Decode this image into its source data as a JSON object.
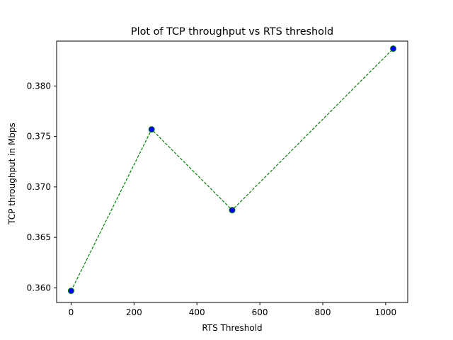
{
  "chart_data": {
    "type": "line",
    "title": "Plot of TCP throughput vs RTS threshold",
    "xlabel": "RTS Threshold",
    "ylabel": "TCP throughput in Mbps",
    "xlim": [
      -46,
      1070
    ],
    "ylim": [
      0.35855,
      0.38445
    ],
    "xticks": [
      0,
      200,
      400,
      600,
      800,
      1000
    ],
    "xtick_labels": [
      "0",
      "200",
      "400",
      "600",
      "800",
      "1000"
    ],
    "yticks": [
      0.36,
      0.365,
      0.37,
      0.375,
      0.38
    ],
    "ytick_labels": [
      "0.360",
      "0.365",
      "0.370",
      "0.375",
      "0.380"
    ],
    "grid": false,
    "legend": "none",
    "series": [
      {
        "x": [
          0,
          256,
          512,
          1024
        ],
        "y": [
          0.3597,
          0.3757,
          0.3677,
          0.3837
        ],
        "line_color": "#008000",
        "line_style": "dashed",
        "marker": "circle",
        "marker_face_color": "#0000ff",
        "marker_edge_color": "#008000"
      }
    ]
  }
}
